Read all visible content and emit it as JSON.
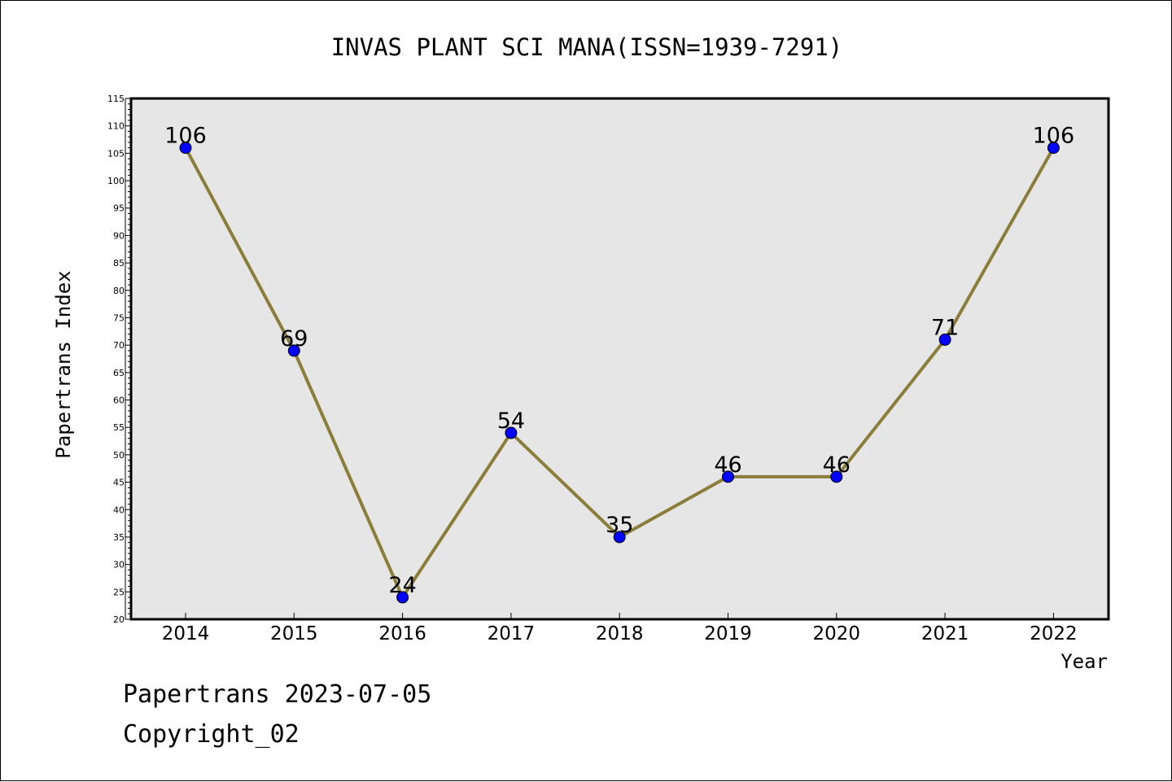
{
  "footer": {
    "line1": "Papertrans 2023-07-05",
    "line2": "Copyright_02"
  },
  "chart_data": {
    "type": "line",
    "title": "INVAS PLANT SCI MANA(ISSN=1939-7291)",
    "xlabel": "Year",
    "ylabel": "Papertrans Index",
    "categories": [
      "2014",
      "2015",
      "2016",
      "2017",
      "2018",
      "2019",
      "2020",
      "2021",
      "2022"
    ],
    "series": [
      {
        "values": [
          106,
          69,
          24,
          54,
          35,
          46,
          46,
          71,
          106
        ]
      }
    ],
    "ylim": [
      20,
      115
    ],
    "yticks": [
      20,
      25,
      30,
      35,
      40,
      45,
      50,
      55,
      60,
      65,
      70,
      75,
      80,
      85,
      90,
      95,
      100,
      105,
      110,
      115
    ],
    "grid": false,
    "colors": {
      "line": "#8b7d3a",
      "marker": "#0000ff",
      "plot_background": "#e6e6e6"
    }
  }
}
